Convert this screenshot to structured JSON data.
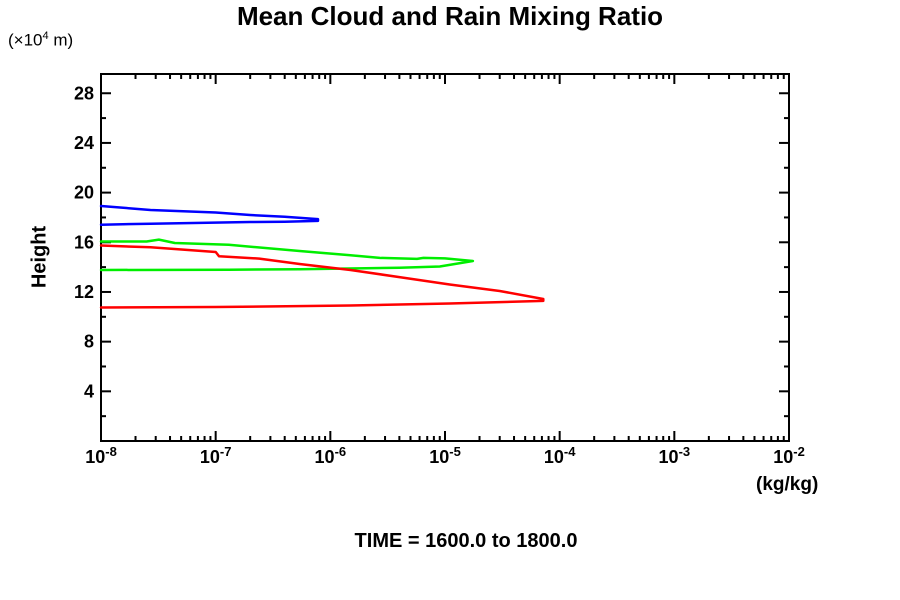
{
  "page": {
    "background": "#ffffff"
  },
  "chart_data": {
    "type": "line",
    "title": "Mean Cloud and Rain Mixing Ratio",
    "caption": "TIME = 1600.0 to 1800.0",
    "x_axis": {
      "scale": "log",
      "unit_label": "(kg/kg)",
      "min_exp": -8,
      "max_exp": -2,
      "tick_exponents": [
        -8,
        -7,
        -6,
        -5,
        -4,
        -3,
        -2
      ],
      "tick_base": "10",
      "minor_ticks_per_decade": [
        2,
        3,
        4,
        5,
        6,
        7,
        8,
        9
      ]
    },
    "y_axis": {
      "axis_label": "Height",
      "unit_label": {
        "prefix": "(×10",
        "exponent": "4",
        "suffix": " m)"
      },
      "min": 0,
      "max": 29.55,
      "major_ticks": [
        4,
        8,
        12,
        16,
        20,
        24,
        28
      ],
      "minor_step": 2,
      "grid": false
    },
    "legend": "none",
    "series": [
      {
        "name": "blue-profile",
        "color": "#0000ff",
        "points": [
          [
            1e-08,
            18.92
          ],
          [
            2.7e-08,
            18.6
          ],
          [
            1e-07,
            18.4
          ],
          [
            2e-07,
            18.2
          ],
          [
            4e-07,
            18.05
          ],
          [
            7.8e-07,
            17.87
          ],
          [
            7.8e-07,
            17.72
          ],
          [
            4e-07,
            17.66
          ],
          [
            2e-07,
            17.63
          ],
          [
            2.7e-08,
            17.5
          ],
          [
            1e-08,
            17.42
          ]
        ]
      },
      {
        "name": "green-profile",
        "color": "#00ee00",
        "points": [
          [
            1e-08,
            16.06
          ],
          [
            2.5e-08,
            16.06
          ],
          [
            3.2e-08,
            16.22
          ],
          [
            4.4e-08,
            15.94
          ],
          [
            1.3e-07,
            15.8
          ],
          [
            5.4e-07,
            15.3
          ],
          [
            1.5e-06,
            14.95
          ],
          [
            2.7e-06,
            14.74
          ],
          [
            5.7e-06,
            14.66
          ],
          [
            6.5e-06,
            14.74
          ],
          [
            1e-05,
            14.7
          ],
          [
            1.75e-05,
            14.49
          ],
          [
            9e-06,
            14.05
          ],
          [
            4e-06,
            13.95
          ],
          [
            5.4e-07,
            13.83
          ],
          [
            1.3e-07,
            13.79
          ],
          [
            1e-08,
            13.77
          ]
        ]
      },
      {
        "name": "red-profile",
        "color": "#ff0000",
        "points": [
          [
            1e-08,
            15.74
          ],
          [
            2.7e-08,
            15.6
          ],
          [
            1e-07,
            15.22
          ],
          [
            1.07e-07,
            14.88
          ],
          [
            2.4e-07,
            14.69
          ],
          [
            5.4e-07,
            14.25
          ],
          [
            1.5e-06,
            13.77
          ],
          [
            4e-06,
            13.2
          ],
          [
            1.1e-05,
            12.6
          ],
          [
            3e-05,
            12.08
          ],
          [
            7.2e-05,
            11.43
          ],
          [
            7.2e-05,
            11.28
          ],
          [
            1.1e-05,
            11.07
          ],
          [
            1.5e-06,
            10.91
          ],
          [
            1e-07,
            10.79
          ],
          [
            1e-08,
            10.75
          ]
        ]
      }
    ]
  }
}
